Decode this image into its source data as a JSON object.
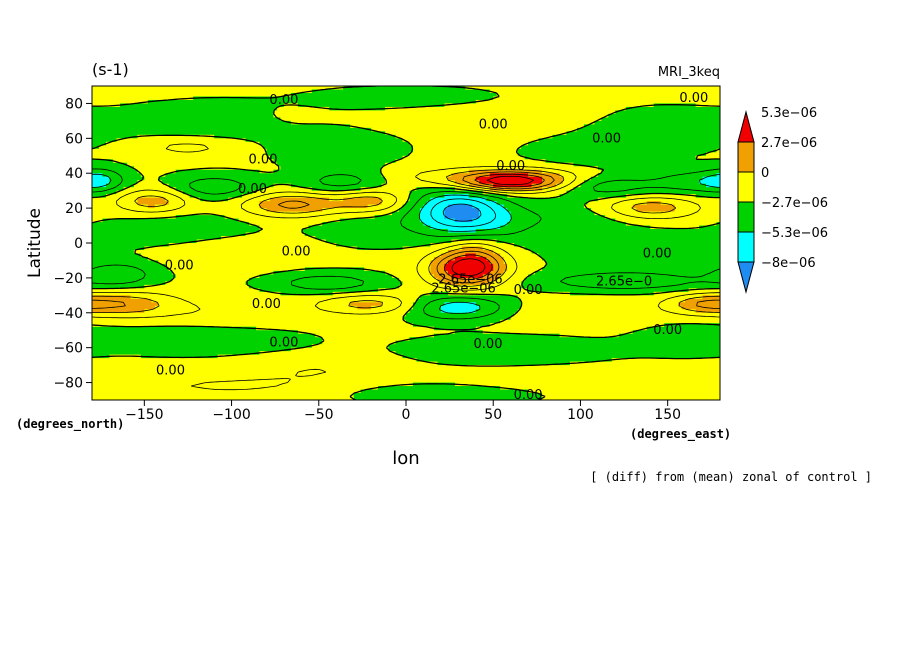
{
  "chart_data": {
    "type": "heatmap",
    "title_left": "(s-1)",
    "title_right": "MRI_3keq",
    "xlabel": "lon",
    "ylabel": "Latitude",
    "x_units": "(degrees_east)",
    "y_units": "(degrees_north)",
    "caption": "[ (diff) from (mean) zonal of control ]",
    "xlim": [
      -180,
      180
    ],
    "ylim": [
      -90,
      90
    ],
    "x_ticks": [
      -150,
      -100,
      -50,
      0,
      50,
      100,
      150
    ],
    "x_tick_labels": [
      "−150",
      "−100",
      "−50",
      "0",
      "50",
      "100",
      "150"
    ],
    "y_ticks": [
      80,
      60,
      40,
      20,
      0,
      -20,
      -40,
      -60,
      -80
    ],
    "y_tick_labels": [
      "80",
      "60",
      "40",
      "20",
      "0",
      "−20",
      "−40",
      "−60",
      "−80"
    ],
    "colorbar": {
      "levels": [
        -8e-06,
        -5.3e-06,
        -2.7e-06,
        0,
        2.7e-06,
        5.3e-06
      ],
      "labels": [
        "−8e−06",
        "−5.3e−06",
        "−2.7e−06",
        "0",
        "2.7e−06",
        "5.3e−06"
      ],
      "colors": [
        "#1e8cf0",
        "#00ffff",
        "#00d200",
        "#ffff00",
        "#f0a000",
        "#f00000"
      ]
    },
    "contour_labels": [
      {
        "text": "0.00",
        "lon": -70,
        "lat": 82
      },
      {
        "text": "0.00",
        "lon": 50,
        "lat": 68
      },
      {
        "text": "0.00",
        "lon": 165,
        "lat": 83
      },
      {
        "text": "0.00",
        "lon": 115,
        "lat": 60
      },
      {
        "text": "0.00",
        "lon": -82,
        "lat": 48
      },
      {
        "text": "0.00",
        "lon": 60,
        "lat": 44
      },
      {
        "text": "0.00",
        "lon": -88,
        "lat": 31
      },
      {
        "text": "0.00",
        "lon": -63,
        "lat": -5
      },
      {
        "text": "0.00",
        "lon": -130,
        "lat": -13
      },
      {
        "text": "0.00",
        "lon": 144,
        "lat": -6
      },
      {
        "text": "2.65e−06",
        "lon": 37,
        "lat": -21
      },
      {
        "text": "2.65e−06",
        "lon": 33,
        "lat": -26
      },
      {
        "text": "0.00",
        "lon": 70,
        "lat": -27
      },
      {
        "text": "2.65e−0",
        "lon": 125,
        "lat": -22
      },
      {
        "text": "0.00",
        "lon": -80,
        "lat": -35
      },
      {
        "text": "0.00",
        "lon": 150,
        "lat": -50
      },
      {
        "text": "0.00",
        "lon": -70,
        "lat": -57
      },
      {
        "text": "0.00",
        "lon": 47,
        "lat": -58
      },
      {
        "text": "0.00",
        "lon": -135,
        "lat": -73
      },
      {
        "text": "0.00",
        "lon": 70,
        "lat": -87
      }
    ],
    "field_features": [
      {
        "lon": -110,
        "lat": 70,
        "slon": 35,
        "slat": 7,
        "amp": -1.4
      },
      {
        "lon": -70,
        "lat": 72,
        "slon": 18,
        "slat": 5,
        "amp": 0.6
      },
      {
        "lon": 40,
        "lat": 72,
        "slon": 45,
        "slat": 6,
        "amp": 1.0
      },
      {
        "lon": 145,
        "lat": 65,
        "slon": 30,
        "slat": 8,
        "amp": -1.3
      },
      {
        "lon": 0,
        "lat": 82,
        "slon": 40,
        "slat": 5,
        "amp": -1.0
      },
      {
        "lon": -125,
        "lat": 55,
        "slon": 20,
        "slat": 4,
        "amp": 1.5
      },
      {
        "lon": -40,
        "lat": 55,
        "slon": 25,
        "slat": 8,
        "amp": -1.2
      },
      {
        "lon": 105,
        "lat": 52,
        "slon": 25,
        "slat": 6,
        "amp": -1.0
      },
      {
        "lon": -175,
        "lat": 36,
        "slon": 10,
        "slat": 5,
        "amp": -2.6
      },
      {
        "lon": -110,
        "lat": 32,
        "slon": 18,
        "slat": 5,
        "amp": -2.6
      },
      {
        "lon": -35,
        "lat": 35,
        "slon": 18,
        "slat": 5,
        "amp": -2.5
      },
      {
        "lon": 115,
        "lat": 33,
        "slon": 20,
        "slat": 5,
        "amp": -2.6
      },
      {
        "lon": 165,
        "lat": 35,
        "slon": 18,
        "slat": 5,
        "amp": -2.4
      },
      {
        "lon": 60,
        "lat": 35,
        "slon": 22,
        "slat": 4,
        "amp": 6.3
      },
      {
        "lon": 50,
        "lat": 38,
        "slon": 45,
        "slat": 4,
        "amp": 2.0
      },
      {
        "lon": 30,
        "lat": 20,
        "slon": 18,
        "slat": 8,
        "amp": -5.0
      },
      {
        "lon": 40,
        "lat": 10,
        "slon": 22,
        "slat": 8,
        "amp": -2.5
      },
      {
        "lon": -145,
        "lat": 24,
        "slon": 15,
        "slat": 5,
        "amp": 3.3
      },
      {
        "lon": -65,
        "lat": 22,
        "slon": 20,
        "slat": 5,
        "amp": 4.2
      },
      {
        "lon": -20,
        "lat": 24,
        "slon": 15,
        "slat": 5,
        "amp": 3.2
      },
      {
        "lon": 140,
        "lat": 20,
        "slon": 20,
        "slat": 5,
        "amp": 3.6
      },
      {
        "lon": 100,
        "lat": 15,
        "slon": 35,
        "slat": 6,
        "amp": -1.2
      },
      {
        "lon": -130,
        "lat": 8,
        "slon": 30,
        "slat": 7,
        "amp": -1.2
      },
      {
        "lon": -20,
        "lat": 10,
        "slon": 25,
        "slat": 8,
        "amp": -1.0
      },
      {
        "lon": -100,
        "lat": -5,
        "slon": 25,
        "slat": 6,
        "amp": 1.0
      },
      {
        "lon": 130,
        "lat": -5,
        "slon": 35,
        "slat": 8,
        "amp": -1.0
      },
      {
        "lon": 35,
        "lat": -15,
        "slon": 15,
        "slat": 7,
        "amp": 7.0
      },
      {
        "lon": 40,
        "lat": -5,
        "slon": 12,
        "slat": 8,
        "amp": 2.0
      },
      {
        "lon": -165,
        "lat": -18,
        "slon": 15,
        "slat": 5,
        "amp": -2.6
      },
      {
        "lon": -45,
        "lat": -23,
        "slon": 22,
        "slat": 4,
        "amp": -2.6
      },
      {
        "lon": 125,
        "lat": -22,
        "slon": 35,
        "slat": 4,
        "amp": -2.7
      },
      {
        "lon": -160,
        "lat": -35,
        "slon": 20,
        "slat": 5,
        "amp": 3.2
      },
      {
        "lon": -20,
        "lat": -35,
        "slon": 20,
        "slat": 4,
        "amp": 3.0
      },
      {
        "lon": 170,
        "lat": -35,
        "slon": 15,
        "slat": 4,
        "amp": 3.0
      },
      {
        "lon": 30,
        "lat": -37,
        "slon": 20,
        "slat": 5,
        "amp": -4.0
      },
      {
        "lon": -100,
        "lat": -40,
        "slon": 35,
        "slat": 6,
        "amp": 1.0
      },
      {
        "lon": 100,
        "lat": -40,
        "slon": 35,
        "slat": 6,
        "amp": 1.0
      },
      {
        "lon": -120,
        "lat": -55,
        "slon": 40,
        "slat": 6,
        "amp": -1.3
      },
      {
        "lon": 60,
        "lat": -62,
        "slon": 40,
        "slat": 6,
        "amp": -1.3
      },
      {
        "lon": 160,
        "lat": -55,
        "slon": 20,
        "slat": 6,
        "amp": -1.2
      },
      {
        "lon": -50,
        "lat": -72,
        "slon": 30,
        "slat": 5,
        "amp": 1.0
      },
      {
        "lon": 100,
        "lat": -78,
        "slon": 50,
        "slat": 5,
        "amp": 1.0
      },
      {
        "lon": -100,
        "lat": -82,
        "slon": 50,
        "slat": 5,
        "amp": 1.2
      },
      {
        "lon": 20,
        "lat": -86,
        "slon": 40,
        "slat": 4,
        "amp": -1.3
      }
    ]
  }
}
